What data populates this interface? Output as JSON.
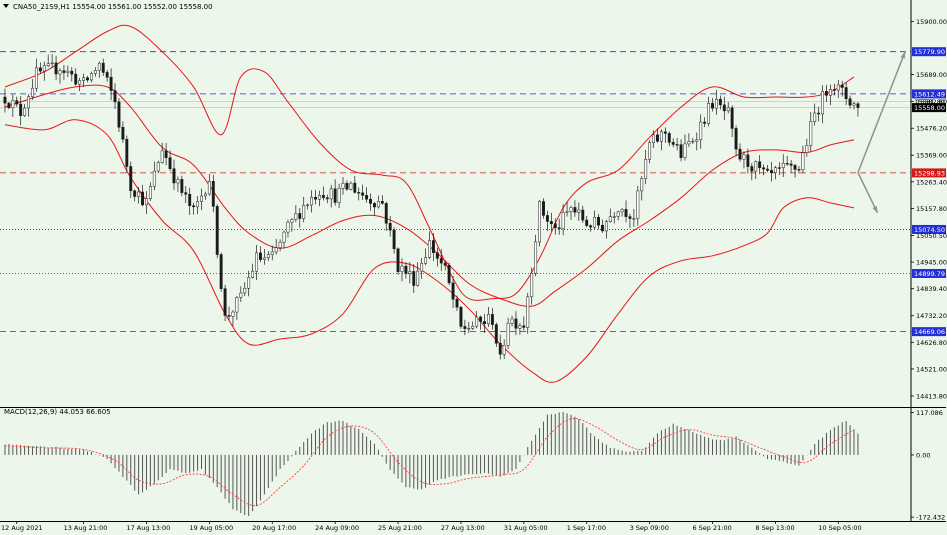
{
  "colors": {
    "background": "#ecf6ea",
    "bull": "#1a1a1a",
    "bear": "#1a1a1a",
    "bands": "#e8161b",
    "level_blue": "#2330d8",
    "level_red": "#d21a1a",
    "current": "#a0a0a0",
    "macd_hist": "#555555",
    "macd_signal": "#ff4040",
    "arrow": "#909090"
  },
  "chart_data": [
    {
      "type": "candlestick",
      "header": "CNA50_21S9,H1  15554.00 15561.00 15552.00 15558.00",
      "ylim": [
        14370,
        15985
      ],
      "y_ticks": [
        15900.0,
        15689.0,
        15582.8,
        15476.2,
        15369.0,
        15263.4,
        15157.8,
        15050.5,
        14945.0,
        14839.4,
        14732.2,
        14626.8,
        14521.0,
        14413.8
      ],
      "x_labels": [
        {
          "bar": 3,
          "label": "12 Aug 2021"
        },
        {
          "bar": 20,
          "label": "13 Aug 21:00"
        },
        {
          "bar": 36,
          "label": "17 Aug 13:00"
        },
        {
          "bar": 52,
          "label": "19 Aug 05:00"
        },
        {
          "bar": 68,
          "label": "20 Aug 17:00"
        },
        {
          "bar": 84,
          "label": "24 Aug 09:00"
        },
        {
          "bar": 100,
          "label": "25 Aug 21:00"
        },
        {
          "bar": 116,
          "label": "27 Aug 13:00"
        },
        {
          "bar": 132,
          "label": "31 Aug 05:00"
        },
        {
          "bar": 148,
          "label": "1 Sep 17:00"
        },
        {
          "bar": 164,
          "label": "3 Sep 09:00"
        },
        {
          "bar": 180,
          "label": "6 Sep 21:00"
        },
        {
          "bar": 196,
          "label": "8 Sep 13:00"
        },
        {
          "bar": 212,
          "label": "10 Sep 05:00"
        }
      ],
      "levels": [
        {
          "value": 15779.9,
          "label": "15779.90",
          "style": "blue-dash"
        },
        {
          "value": 15612.49,
          "label": "15612.49",
          "style": "blue-dash"
        },
        {
          "value": 15581.8,
          "label": "15581.80",
          "style": "thin"
        },
        {
          "value": 15558.0,
          "label": "15558.00",
          "style": "current"
        },
        {
          "value": 15298.93,
          "label": "15298.93",
          "style": "red-dash"
        },
        {
          "value": 15074.5,
          "label": "15074.50",
          "style": "blue-dot"
        },
        {
          "value": 14899.79,
          "label": "14899.79",
          "style": "blue-dot"
        },
        {
          "value": 14669.06,
          "label": "14669.06",
          "style": "blue-dash"
        }
      ],
      "anchors": [
        [
          0,
          15600
        ],
        [
          4,
          15540
        ],
        [
          8,
          15690
        ],
        [
          14,
          15720
        ],
        [
          20,
          15650
        ],
        [
          24,
          15730
        ],
        [
          28,
          15580
        ],
        [
          32,
          15250
        ],
        [
          36,
          15180
        ],
        [
          40,
          15400
        ],
        [
          44,
          15250
        ],
        [
          48,
          15140
        ],
        [
          52,
          15280
        ],
        [
          56,
          14720
        ],
        [
          60,
          14800
        ],
        [
          64,
          14960
        ],
        [
          68,
          14960
        ],
        [
          72,
          15080
        ],
        [
          76,
          15170
        ],
        [
          80,
          15230
        ],
        [
          84,
          15210
        ],
        [
          88,
          15250
        ],
        [
          92,
          15200
        ],
        [
          96,
          15180
        ],
        [
          100,
          14930
        ],
        [
          104,
          14880
        ],
        [
          108,
          15020
        ],
        [
          112,
          14910
        ],
        [
          116,
          14680
        ],
        [
          120,
          14700
        ],
        [
          124,
          14720
        ],
        [
          126,
          14550
        ],
        [
          128,
          14720
        ],
        [
          132,
          14700
        ],
        [
          136,
          15160
        ],
        [
          140,
          15070
        ],
        [
          144,
          15160
        ],
        [
          148,
          15100
        ],
        [
          152,
          15090
        ],
        [
          156,
          15170
        ],
        [
          160,
          15130
        ],
        [
          164,
          15410
        ],
        [
          168,
          15460
        ],
        [
          172,
          15370
        ],
        [
          176,
          15460
        ],
        [
          180,
          15580
        ],
        [
          184,
          15530
        ],
        [
          186,
          15370
        ],
        [
          190,
          15330
        ],
        [
          194,
          15280
        ],
        [
          198,
          15310
        ],
        [
          202,
          15320
        ],
        [
          206,
          15530
        ],
        [
          210,
          15660
        ],
        [
          214,
          15600
        ],
        [
          217,
          15558
        ]
      ],
      "bollinger": {
        "upper": [
          [
            0,
            15640
          ],
          [
            10,
            15700
          ],
          [
            18,
            15780
          ],
          [
            26,
            15860
          ],
          [
            32,
            15880
          ],
          [
            40,
            15780
          ],
          [
            48,
            15640
          ],
          [
            55,
            15450
          ],
          [
            60,
            15680
          ],
          [
            66,
            15700
          ],
          [
            72,
            15580
          ],
          [
            80,
            15420
          ],
          [
            88,
            15310
          ],
          [
            96,
            15290
          ],
          [
            102,
            15260
          ],
          [
            108,
            15080
          ],
          [
            114,
            14880
          ],
          [
            118,
            14800
          ],
          [
            124,
            14800
          ],
          [
            130,
            14820
          ],
          [
            136,
            14960
          ],
          [
            142,
            15160
          ],
          [
            148,
            15260
          ],
          [
            156,
            15310
          ],
          [
            164,
            15440
          ],
          [
            172,
            15560
          ],
          [
            180,
            15640
          ],
          [
            188,
            15600
          ],
          [
            196,
            15600
          ],
          [
            204,
            15600
          ],
          [
            210,
            15620
          ],
          [
            216,
            15680
          ]
        ],
        "middle": [
          [
            0,
            15560
          ],
          [
            10,
            15610
          ],
          [
            18,
            15640
          ],
          [
            26,
            15640
          ],
          [
            32,
            15560
          ],
          [
            40,
            15400
          ],
          [
            48,
            15330
          ],
          [
            56,
            15160
          ],
          [
            62,
            15060
          ],
          [
            70,
            15000
          ],
          [
            78,
            15050
          ],
          [
            86,
            15110
          ],
          [
            94,
            15130
          ],
          [
            102,
            15080
          ],
          [
            110,
            14980
          ],
          [
            118,
            14860
          ],
          [
            126,
            14800
          ],
          [
            134,
            14770
          ],
          [
            140,
            14830
          ],
          [
            148,
            14920
          ],
          [
            156,
            15030
          ],
          [
            164,
            15110
          ],
          [
            172,
            15200
          ],
          [
            180,
            15310
          ],
          [
            188,
            15380
          ],
          [
            196,
            15390
          ],
          [
            204,
            15380
          ],
          [
            210,
            15410
          ],
          [
            216,
            15430
          ]
        ],
        "lower": [
          [
            0,
            15490
          ],
          [
            10,
            15470
          ],
          [
            18,
            15510
          ],
          [
            26,
            15450
          ],
          [
            32,
            15280
          ],
          [
            40,
            15110
          ],
          [
            48,
            14990
          ],
          [
            56,
            14740
          ],
          [
            62,
            14620
          ],
          [
            70,
            14640
          ],
          [
            78,
            14660
          ],
          [
            86,
            14740
          ],
          [
            94,
            14920
          ],
          [
            102,
            14940
          ],
          [
            110,
            14870
          ],
          [
            118,
            14760
          ],
          [
            126,
            14620
          ],
          [
            134,
            14510
          ],
          [
            140,
            14470
          ],
          [
            148,
            14570
          ],
          [
            156,
            14740
          ],
          [
            164,
            14890
          ],
          [
            172,
            14950
          ],
          [
            180,
            14970
          ],
          [
            188,
            15010
          ],
          [
            194,
            15060
          ],
          [
            198,
            15160
          ],
          [
            204,
            15200
          ],
          [
            210,
            15180
          ],
          [
            216,
            15160
          ]
        ]
      },
      "projection": [
        {
          "from": [
            217,
            15300
          ],
          "to": [
            229,
            15779.9
          ]
        },
        {
          "from": [
            217,
            15300
          ],
          "to": [
            222,
            15140
          ]
        }
      ]
    },
    {
      "type": "bar+line",
      "title": "MACD(12,26,9) 44.053 66.605",
      "ylim": [
        -183,
        130
      ],
      "y_ticks": [
        117.086,
        0.0,
        -172.432
      ],
      "hist_anchors": [
        [
          0,
          30
        ],
        [
          8,
          25
        ],
        [
          14,
          20
        ],
        [
          20,
          15
        ],
        [
          26,
          -10
        ],
        [
          30,
          -60
        ],
        [
          34,
          -110
        ],
        [
          38,
          -80
        ],
        [
          42,
          -40
        ],
        [
          46,
          -50
        ],
        [
          50,
          -40
        ],
        [
          54,
          -90
        ],
        [
          58,
          -150
        ],
        [
          62,
          -170
        ],
        [
          66,
          -110
        ],
        [
          70,
          -40
        ],
        [
          74,
          10
        ],
        [
          78,
          60
        ],
        [
          82,
          90
        ],
        [
          86,
          95
        ],
        [
          90,
          70
        ],
        [
          94,
          30
        ],
        [
          98,
          -40
        ],
        [
          102,
          -90
        ],
        [
          106,
          -95
        ],
        [
          110,
          -70
        ],
        [
          114,
          -60
        ],
        [
          118,
          -55
        ],
        [
          122,
          -50
        ],
        [
          126,
          -60
        ],
        [
          130,
          -40
        ],
        [
          134,
          40
        ],
        [
          138,
          110
        ],
        [
          142,
          120
        ],
        [
          146,
          100
        ],
        [
          150,
          50
        ],
        [
          154,
          20
        ],
        [
          158,
          10
        ],
        [
          162,
          10
        ],
        [
          166,
          60
        ],
        [
          170,
          85
        ],
        [
          174,
          70
        ],
        [
          178,
          50
        ],
        [
          182,
          40
        ],
        [
          186,
          50
        ],
        [
          190,
          20
        ],
        [
          194,
          -10
        ],
        [
          198,
          -20
        ],
        [
          202,
          -30
        ],
        [
          206,
          30
        ],
        [
          210,
          70
        ],
        [
          214,
          95
        ],
        [
          217,
          60
        ]
      ],
      "signal_anchors": [
        [
          0,
          25
        ],
        [
          10,
          20
        ],
        [
          20,
          15
        ],
        [
          28,
          -15
        ],
        [
          34,
          -70
        ],
        [
          40,
          -80
        ],
        [
          46,
          -55
        ],
        [
          52,
          -60
        ],
        [
          58,
          -110
        ],
        [
          64,
          -140
        ],
        [
          70,
          -90
        ],
        [
          76,
          -30
        ],
        [
          82,
          50
        ],
        [
          88,
          80
        ],
        [
          94,
          60
        ],
        [
          100,
          -20
        ],
        [
          106,
          -75
        ],
        [
          112,
          -80
        ],
        [
          118,
          -65
        ],
        [
          126,
          -55
        ],
        [
          132,
          -40
        ],
        [
          138,
          50
        ],
        [
          144,
          100
        ],
        [
          150,
          80
        ],
        [
          156,
          40
        ],
        [
          162,
          15
        ],
        [
          168,
          50
        ],
        [
          174,
          70
        ],
        [
          180,
          55
        ],
        [
          186,
          45
        ],
        [
          192,
          20
        ],
        [
          198,
          -5
        ],
        [
          204,
          -20
        ],
        [
          210,
          30
        ],
        [
          216,
          70
        ]
      ]
    }
  ]
}
